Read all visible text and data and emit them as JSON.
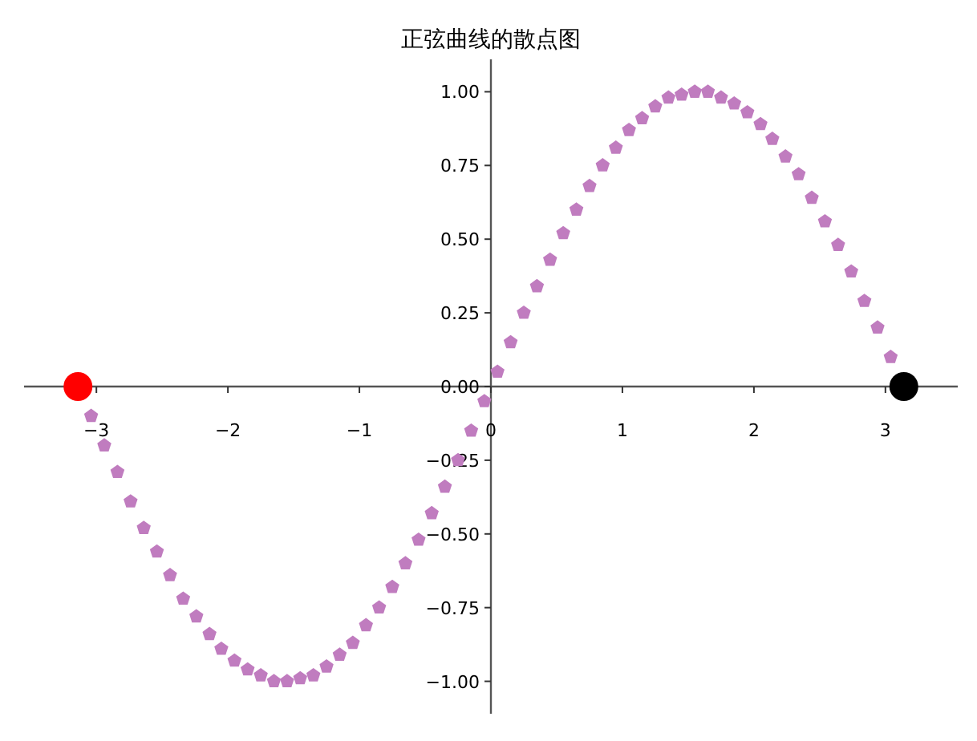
{
  "chart_data": {
    "type": "scatter",
    "title": "正弦曲线的散点图",
    "xlim": [
      -3.55,
      3.55
    ],
    "ylim": [
      -1.11,
      1.11
    ],
    "xticks": [
      {
        "value": -3,
        "label": "−3"
      },
      {
        "value": -2,
        "label": "−2"
      },
      {
        "value": -1,
        "label": "−1"
      },
      0,
      1,
      2,
      3
    ],
    "yticks": [
      {
        "value": -1,
        "label": "−1.00"
      },
      {
        "value": -0.75,
        "label": "−0.75"
      },
      {
        "value": -0.5,
        "label": "−0.50"
      },
      {
        "value": -0.25,
        "label": "−0.25"
      },
      {
        "value": 0,
        "label": "0.00"
      },
      {
        "value": 0.25,
        "label": "0.25"
      },
      {
        "value": 0.5,
        "label": "0.50"
      },
      {
        "value": 0.75,
        "label": "0.75"
      },
      {
        "value": 1,
        "label": "1.00"
      }
    ],
    "grid": false,
    "series": [
      {
        "color": "#c07cbf",
        "x": [
          -2.94,
          -2.74,
          -2.54,
          -2.34,
          -2.14,
          -1.95,
          -1.75,
          -1.55,
          -1.35,
          -1.15,
          -0.95,
          -0.75,
          -0.55,
          -0.35,
          -0.15,
          0.05,
          0.25,
          0.45,
          0.65,
          0.85,
          1.05,
          1.25,
          1.45,
          1.65,
          1.85,
          2.05,
          2.24,
          2.44,
          2.64,
          2.84,
          3.04
        ],
        "values": [
          -0.2,
          -0.39,
          -0.56,
          -0.72,
          -0.84,
          -0.93,
          -0.98,
          -1.0,
          -0.98,
          -0.91,
          -0.81,
          -0.68,
          -0.52,
          -0.34,
          -0.15,
          0.05,
          0.25,
          0.43,
          0.6,
          0.75,
          0.87,
          0.95,
          0.99,
          1.0,
          0.96,
          0.89,
          0.78,
          0.64,
          0.48,
          0.29,
          0.1
        ]
      },
      {
        "color": "#c07cbf",
        "x": [
          -3.04,
          -2.84,
          -2.64,
          -2.44,
          -2.24,
          -2.05,
          -1.85,
          -1.65,
          -1.45,
          -1.25,
          -1.05,
          -0.85,
          -0.65,
          -0.45,
          -0.25,
          -0.05,
          0.15,
          0.35,
          0.55,
          0.75,
          0.95,
          1.15,
          1.35,
          1.55,
          1.75,
          1.95,
          2.14,
          2.34,
          2.54,
          2.74,
          2.94
        ],
        "values": [
          -0.1,
          -0.29,
          -0.48,
          -0.64,
          -0.78,
          -0.89,
          -0.96,
          -1.0,
          -0.99,
          -0.95,
          -0.87,
          -0.75,
          -0.6,
          -0.43,
          -0.25,
          -0.05,
          0.15,
          0.34,
          0.52,
          0.68,
          0.81,
          0.91,
          0.98,
          1.0,
          0.98,
          0.93,
          0.84,
          0.72,
          0.56,
          0.39,
          0.2
        ]
      },
      {
        "color": "#ff0000",
        "marker": "circle",
        "x": [
          -3.14
        ],
        "values": [
          0
        ]
      },
      {
        "color": "#000000",
        "marker": "circle",
        "x": [
          3.14
        ],
        "values": [
          0
        ]
      }
    ]
  }
}
